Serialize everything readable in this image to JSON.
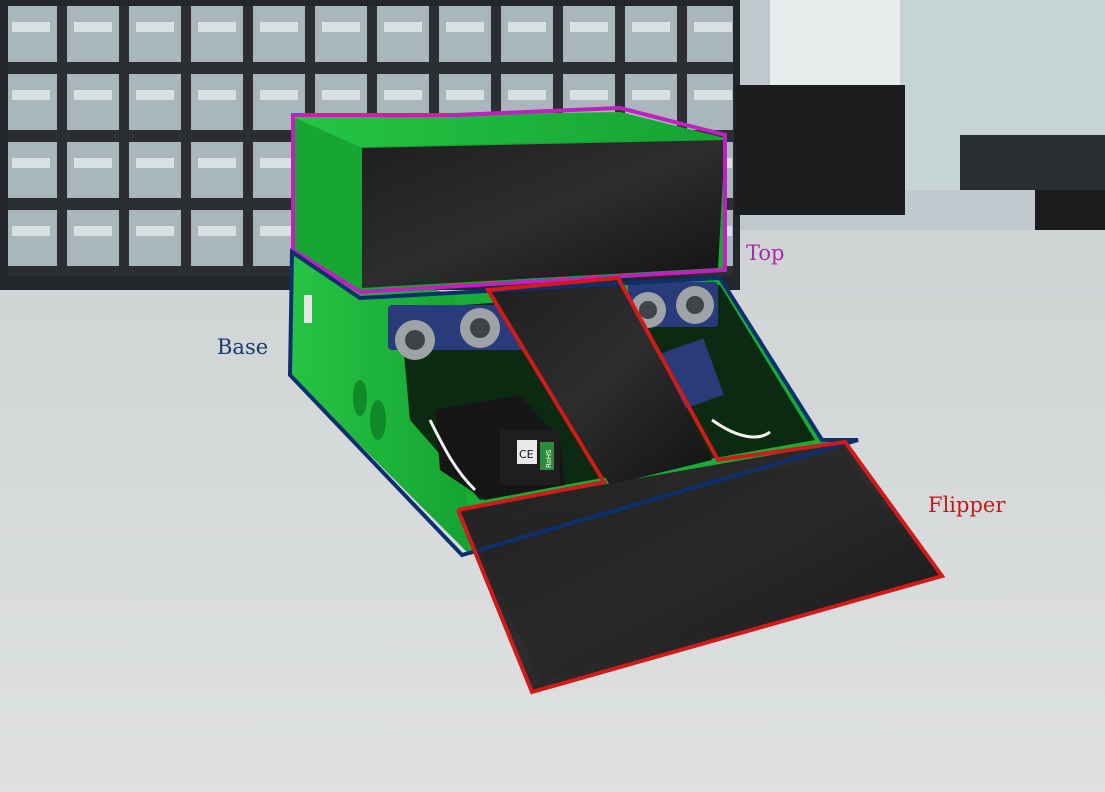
{
  "labels": {
    "top": "Top",
    "base": "Base",
    "flipper": "Flipper"
  },
  "colors": {
    "top_outline": "#c21fc2",
    "base_outline": "#0e2f6e",
    "flipper_outline": "#d11a1a",
    "top_text": "#a52fa8",
    "base_text": "#1a3a6b",
    "flipper_text": "#c21a1a",
    "plastic_green": "#1fb53a",
    "tape_black": "#151515"
  },
  "component_labels": {
    "ce_mark": "CE",
    "rohs_mark": "RoHS"
  }
}
